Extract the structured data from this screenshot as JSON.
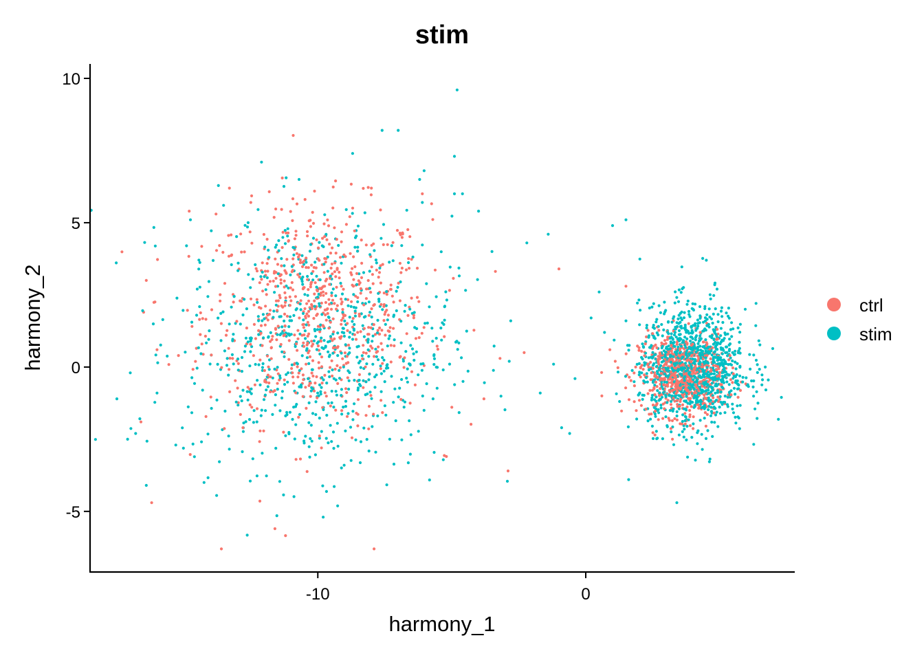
{
  "chart_data": {
    "type": "scatter",
    "title": "stim",
    "xlabel": "harmony_1",
    "ylabel": "harmony_2",
    "xlim": [
      -18.5,
      7.8
    ],
    "ylim": [
      -7.1,
      10.5
    ],
    "xticks": [
      -10,
      0
    ],
    "xtick_labels": [
      "-10",
      "0"
    ],
    "yticks": [
      -5,
      0,
      5,
      10
    ],
    "ytick_labels": [
      "-5",
      "0",
      "5",
      "10"
    ],
    "grid": false,
    "legend_position": "right",
    "series": [
      {
        "name": "ctrl",
        "color": "#F8766D",
        "clusters": [
          {
            "cx": -10,
            "cy": 1.8,
            "sx": 2.1,
            "sy": 1.9,
            "n": 700
          },
          {
            "cx": 3.6,
            "cy": -0.3,
            "sx": 0.8,
            "sy": 0.7,
            "n": 650
          }
        ],
        "points": [
          [
            -13.3,
            6.2
          ],
          [
            -13.6,
            -6.3
          ],
          [
            -7.9,
            -6.3
          ],
          [
            -11.6,
            -5.6
          ],
          [
            -16.2,
            -4.7
          ],
          [
            -16.4,
            3.0
          ],
          [
            -16.5,
            1.9
          ],
          [
            -16.0,
            0.6
          ],
          [
            -16.6,
            -1.9
          ],
          [
            -14.8,
            5.4
          ],
          [
            -12.5,
            5.7
          ],
          [
            -8.0,
            6.2
          ],
          [
            -6.1,
            6.0
          ],
          [
            -2.9,
            -3.6
          ],
          [
            -1.0,
            3.4
          ],
          [
            1.5,
            2.8
          ],
          [
            0.9,
            0.6
          ],
          [
            -3.8,
            -1.1
          ],
          [
            -2.3,
            0.5
          ],
          [
            -3.2,
            0.3
          ],
          [
            -13.8,
            5.3
          ],
          [
            -5.2,
            -3.1
          ],
          [
            -15.2,
            0.4
          ],
          [
            0.6,
            -1.0
          ],
          [
            1.1,
            0.2
          ]
        ]
      },
      {
        "name": "stim",
        "color": "#00BFC4",
        "clusters": [
          {
            "cx": -10,
            "cy": 0.8,
            "sx": 2.5,
            "sy": 2.2,
            "n": 750
          },
          {
            "cx": 4.0,
            "cy": 0.0,
            "sx": 1.0,
            "sy": 1.05,
            "n": 1100
          }
        ],
        "points": [
          [
            -4.8,
            9.6
          ],
          [
            -7.6,
            8.2
          ],
          [
            -7.0,
            8.2
          ],
          [
            -8.7,
            7.4
          ],
          [
            -12.1,
            7.1
          ],
          [
            -4.9,
            7.3
          ],
          [
            -4.6,
            6.0
          ],
          [
            -4.9,
            6.0
          ],
          [
            -6.2,
            6.5
          ],
          [
            -10.7,
            6.5
          ],
          [
            -17.5,
            -1.1
          ],
          [
            -17.1,
            -2.5
          ],
          [
            -16.8,
            -2.3
          ],
          [
            -16.4,
            -4.1
          ],
          [
            -16.0,
            -0.9
          ],
          [
            -17.0,
            -0.2
          ],
          [
            -15.3,
            -2.7
          ],
          [
            -14.3,
            -0.8
          ],
          [
            -14.9,
            4.2
          ],
          [
            -14.5,
            2.7
          ],
          [
            -2.2,
            4.3
          ],
          [
            -1.4,
            4.6
          ],
          [
            1.0,
            4.9
          ],
          [
            1.5,
            5.1
          ],
          [
            -2.8,
            1.6
          ],
          [
            -1.2,
            0.1
          ],
          [
            -1.7,
            -0.9
          ],
          [
            1.5,
            1.6
          ],
          [
            0.7,
            1.2
          ],
          [
            -0.6,
            -2.3
          ],
          [
            1.6,
            -3.9
          ],
          [
            3.4,
            -4.7
          ],
          [
            4.5,
            3.7
          ],
          [
            4.9,
            2.7
          ],
          [
            6.7,
            0.0
          ],
          [
            -4.0,
            5.4
          ],
          [
            -3.5,
            4.0
          ],
          [
            0.5,
            2.6
          ],
          [
            -0.9,
            -2.1
          ],
          [
            -5.7,
            -1.1
          ],
          [
            -12.6,
            5.0
          ],
          [
            -6.1,
            5.7
          ],
          [
            -0.4,
            -0.4
          ],
          [
            0.2,
            1.7
          ],
          [
            -9.8,
            -5.2
          ]
        ]
      }
    ]
  }
}
